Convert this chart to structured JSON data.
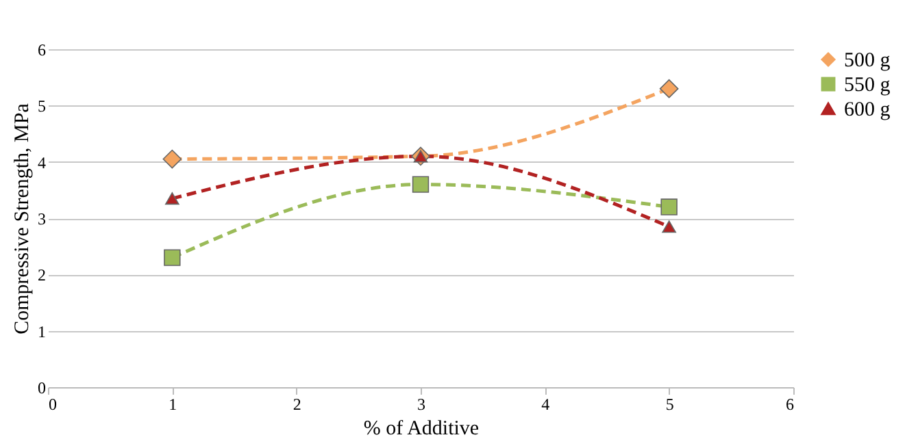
{
  "chart_data": {
    "type": "line",
    "xlabel": "% of Additive",
    "ylabel": "Compressive Strength, MPa",
    "x": [
      1,
      3,
      5
    ],
    "series": [
      {
        "name": "500 g",
        "color": "#f4a460",
        "marker": "diamond",
        "values": [
          4.05,
          4.1,
          5.3
        ]
      },
      {
        "name": "550 g",
        "color": "#9bbb59",
        "marker": "square",
        "values": [
          2.3,
          3.6,
          3.2
        ]
      },
      {
        "name": "600 g",
        "color": "#b22222",
        "marker": "triangle",
        "values": [
          3.35,
          4.1,
          2.85
        ]
      }
    ],
    "xlim": [
      0,
      6
    ],
    "xticks": [
      0,
      1,
      2,
      3,
      4,
      5,
      6
    ],
    "ylim": [
      0,
      6
    ],
    "yticks": [
      0,
      1,
      2,
      3,
      4,
      5,
      6
    ],
    "grid": "y",
    "legend": "right",
    "line_style": "dashed"
  }
}
